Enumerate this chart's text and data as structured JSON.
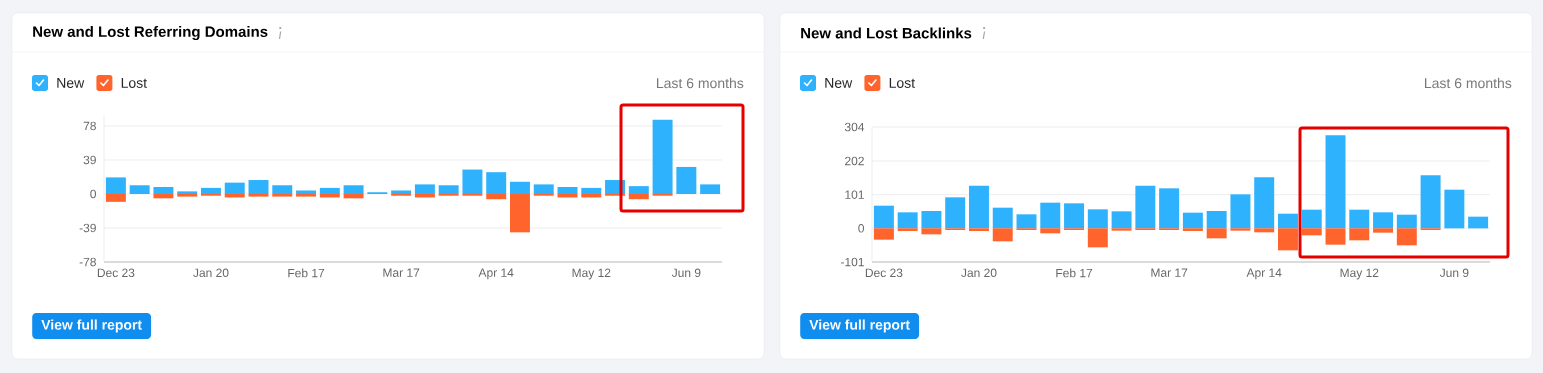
{
  "chart_data": [
    {
      "type": "bar",
      "title": "New and Lost Referring Domains",
      "stacked": true,
      "grid": "y",
      "legend": "top left",
      "categories": [
        "Dec 23",
        null,
        null,
        null,
        "Jan 20",
        null,
        null,
        null,
        "Feb 17",
        null,
        null,
        null,
        "Mar 17",
        null,
        null,
        null,
        "Apr 14",
        null,
        null,
        null,
        "May 12",
        null,
        null,
        null,
        "Jun 9",
        null
      ],
      "series": [
        {
          "name": "New",
          "color": "#2eb2fd",
          "values": [
            19,
            10,
            8,
            3,
            7,
            13,
            16,
            10,
            4,
            7,
            10,
            2,
            4,
            11,
            10,
            28,
            25,
            14,
            11,
            8,
            7,
            16,
            9,
            85,
            31,
            11
          ]
        },
        {
          "name": "Lost",
          "color": "#ff642d",
          "values": [
            -9,
            null,
            -5,
            -3,
            -2,
            -4,
            -3,
            -3,
            -3,
            -4,
            -5,
            null,
            -2,
            -4,
            -2,
            -2,
            -6,
            -44,
            -2,
            -4,
            -4,
            -2,
            -6,
            -2,
            null,
            null
          ]
        }
      ],
      "ylim": [
        -78,
        90
      ],
      "yticks": [
        -78,
        -39,
        0,
        39,
        78
      ],
      "annotations": [
        "Last 6 months",
        "View full report"
      ]
    },
    {
      "type": "bar",
      "title": "New and Lost Backlinks",
      "stacked": true,
      "grid": "y",
      "legend": "top left",
      "categories": [
        "Dec 23",
        null,
        null,
        null,
        "Jan 20",
        null,
        null,
        null,
        "Feb 17",
        null,
        null,
        null,
        "Mar 17",
        null,
        null,
        null,
        "Apr 14",
        null,
        null,
        null,
        "May 12",
        null,
        null,
        null,
        "Jun 9",
        null
      ],
      "series": [
        {
          "name": "New",
          "color": "#2eb2fd",
          "values": [
            68,
            48,
            52,
            93,
            128,
            62,
            42,
            77,
            75,
            57,
            51,
            128,
            120,
            47,
            52,
            102,
            153,
            44,
            56,
            279,
            56,
            48,
            41,
            159,
            116,
            35
          ]
        },
        {
          "name": "Lost",
          "color": "#ff642d",
          "values": [
            -34,
            -8,
            -18,
            -5,
            -8,
            -39,
            -5,
            -15,
            -5,
            -57,
            -7,
            -5,
            -5,
            -8,
            -30,
            -7,
            -12,
            -66,
            -21,
            -49,
            -36,
            -13,
            -51,
            -5,
            null,
            null
          ]
        }
      ],
      "ylim": [
        -101,
        304
      ],
      "yticks": [
        -101,
        0,
        101,
        202,
        304
      ],
      "annotations": [
        "Last 6 months",
        "View full report"
      ]
    }
  ]
}
